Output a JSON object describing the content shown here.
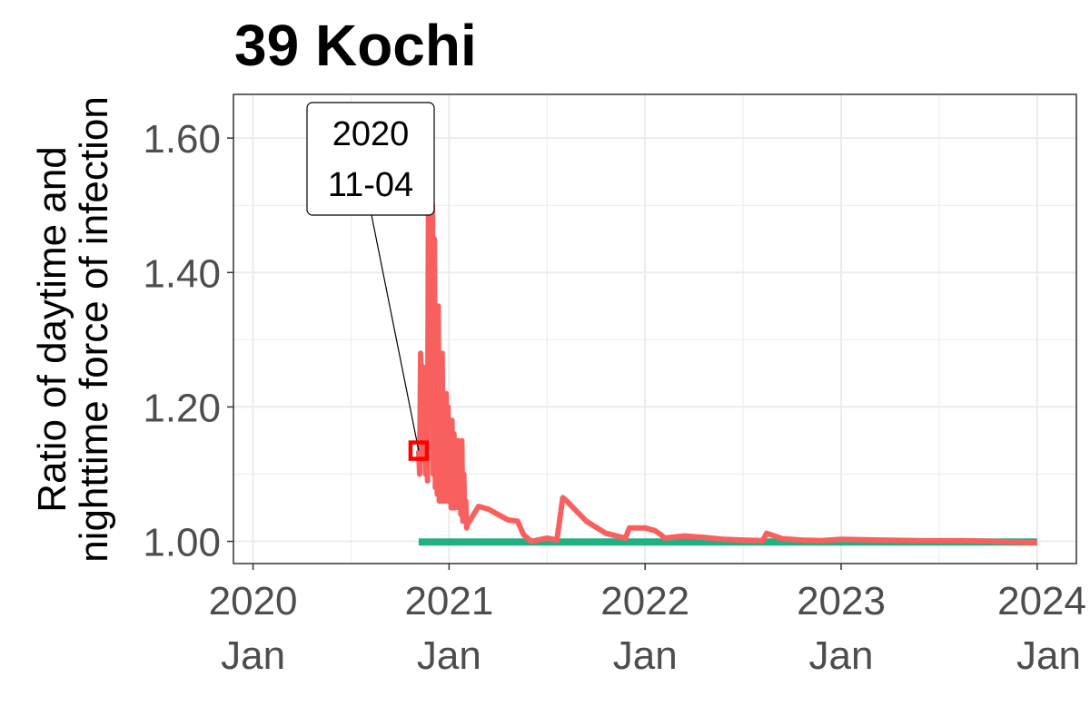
{
  "chart_data": {
    "type": "line",
    "title": "39 Kochi",
    "ylabel": [
      "Ratio of daytime and",
      "nighttime force of infection"
    ],
    "xlabel": "",
    "xlim": [
      2019.9,
      2024.2
    ],
    "ylim": [
      0.967,
      1.665
    ],
    "yticks": [
      {
        "value": 1.0,
        "label": "1.00"
      },
      {
        "value": 1.2,
        "label": "1.20"
      },
      {
        "value": 1.4,
        "label": "1.40"
      },
      {
        "value": 1.6,
        "label": "1.60"
      }
    ],
    "xticks": [
      {
        "value": 2020,
        "line1": "2020",
        "line2": "Jan"
      },
      {
        "value": 2021,
        "line1": "2021",
        "line2": "Jan"
      },
      {
        "value": 2022,
        "line1": "2022",
        "line2": "Jan"
      },
      {
        "value": 2023,
        "line1": "2023",
        "line2": "Jan"
      },
      {
        "value": 2024,
        "line1": "2024",
        "line2": "Jan"
      }
    ],
    "colors": {
      "series_red": "#F8605F",
      "series_green": "#21B083",
      "marker": "#FF0000",
      "grid": "#EBEBEB",
      "panel_border": "#333333"
    },
    "series": [
      {
        "name": "ratio",
        "color": "#F8605F",
        "x": [
          2020.845,
          2020.85,
          2020.855,
          2020.86,
          2020.865,
          2020.87,
          2020.875,
          2020.88,
          2020.885,
          2020.89,
          2020.895,
          2020.9,
          2020.905,
          2020.91,
          2020.915,
          2020.92,
          2020.925,
          2020.93,
          2020.935,
          2020.94,
          2020.945,
          2020.95,
          2020.955,
          2020.96,
          2020.965,
          2020.97,
          2020.975,
          2020.98,
          2020.985,
          2020.99,
          2020.995,
          2021.0,
          2021.005,
          2021.01,
          2021.015,
          2021.02,
          2021.025,
          2021.03,
          2021.035,
          2021.04,
          2021.045,
          2021.05,
          2021.055,
          2021.06,
          2021.065,
          2021.07,
          2021.075,
          2021.08,
          2021.085,
          2021.09,
          2021.095,
          2021.1,
          2021.15,
          2021.2,
          2021.25,
          2021.3,
          2021.35,
          2021.38,
          2021.42,
          2021.5,
          2021.55,
          2021.58,
          2021.6,
          2021.7,
          2021.8,
          2021.9,
          2021.92,
          2022.0,
          2022.05,
          2022.08,
          2022.1,
          2022.2,
          2022.3,
          2022.4,
          2022.5,
          2022.6,
          2022.62,
          2022.7,
          2022.8,
          2022.9,
          2023.0,
          2023.2,
          2023.4,
          2023.6,
          2023.8,
          2024.0
        ],
        "values": [
          1.135,
          1.1,
          1.28,
          1.18,
          1.26,
          1.12,
          1.22,
          1.1,
          1.2,
          1.09,
          1.5,
          1.35,
          1.63,
          1.2,
          1.5,
          1.1,
          1.45,
          1.08,
          1.3,
          1.07,
          1.35,
          1.06,
          1.25,
          1.06,
          1.28,
          1.06,
          1.2,
          1.06,
          1.22,
          1.06,
          1.2,
          1.06,
          1.18,
          1.05,
          1.18,
          1.05,
          1.16,
          1.05,
          1.14,
          1.06,
          1.15,
          1.05,
          1.12,
          1.04,
          1.15,
          1.03,
          1.1,
          1.03,
          1.06,
          1.02,
          1.03,
          1.028,
          1.052,
          1.048,
          1.04,
          1.032,
          1.03,
          1.01,
          1.0,
          1.005,
          1.002,
          1.065,
          1.06,
          1.03,
          1.012,
          1.005,
          1.02,
          1.02,
          1.016,
          1.01,
          1.005,
          1.008,
          1.006,
          1.003,
          1.002,
          1.001,
          1.012,
          1.004,
          1.002,
          1.001,
          1.003,
          1.002,
          1.001,
          1.001,
          1.0,
          0.998
        ]
      },
      {
        "name": "baseline",
        "color": "#21B083",
        "x": [
          2020.845,
          2024.0
        ],
        "values": [
          0.999,
          0.999
        ]
      }
    ],
    "annotations": [
      {
        "text_line1": "2020",
        "text_line2": "11-04",
        "x": 2020.845,
        "y": 1.135
      }
    ]
  }
}
